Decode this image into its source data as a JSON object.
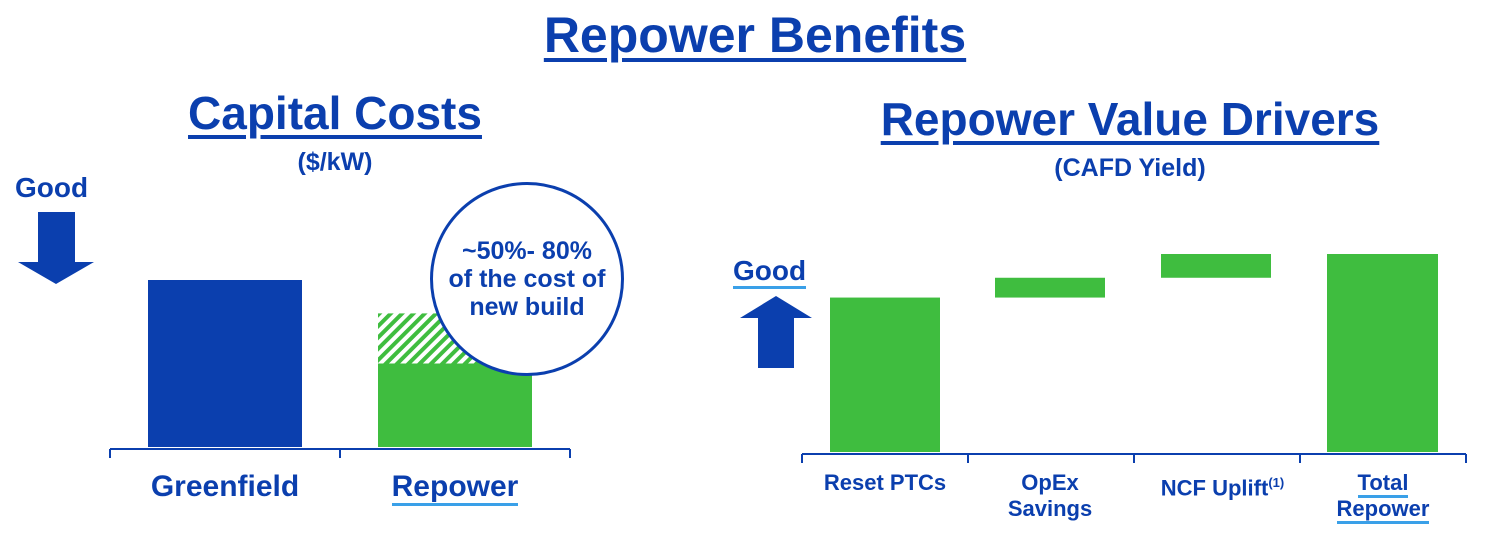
{
  "title": "Repower Benefits",
  "left_chart": {
    "title": "Capital Costs",
    "unit": "($/kW)",
    "good_label": "Good",
    "good_direction": "down",
    "callout": "~50%- 80% of the cost of new build"
  },
  "right_chart": {
    "title": "Repower Value Drivers",
    "unit": "(CAFD Yield)",
    "good_label": "Good",
    "good_direction": "up",
    "footnote_marker": "(1)"
  },
  "colors": {
    "blue": "#0b3fae",
    "green": "#3fbd3f",
    "underline": "#3aa0e8"
  },
  "chart_data": [
    {
      "type": "bar",
      "title": "Capital Costs",
      "ylabel": "($/kW)",
      "categories": [
        "Greenfield",
        "Repower"
      ],
      "ylim": [
        0,
        100
      ],
      "values": [
        100,
        80
      ],
      "repower_range": {
        "low": 50,
        "high": 80
      },
      "grid": false
    },
    {
      "type": "bar",
      "subtype": "waterfall",
      "title": "Repower Value Drivers",
      "ylabel": "(CAFD Yield)",
      "categories": [
        "Reset PTCs",
        "OpEx Savings",
        "NCF Uplift",
        "Total Repower"
      ],
      "ylim": [
        0,
        100
      ],
      "values": [
        78,
        10,
        12,
        100
      ],
      "bases": [
        0,
        78,
        88,
        0
      ],
      "grid": false
    }
  ]
}
